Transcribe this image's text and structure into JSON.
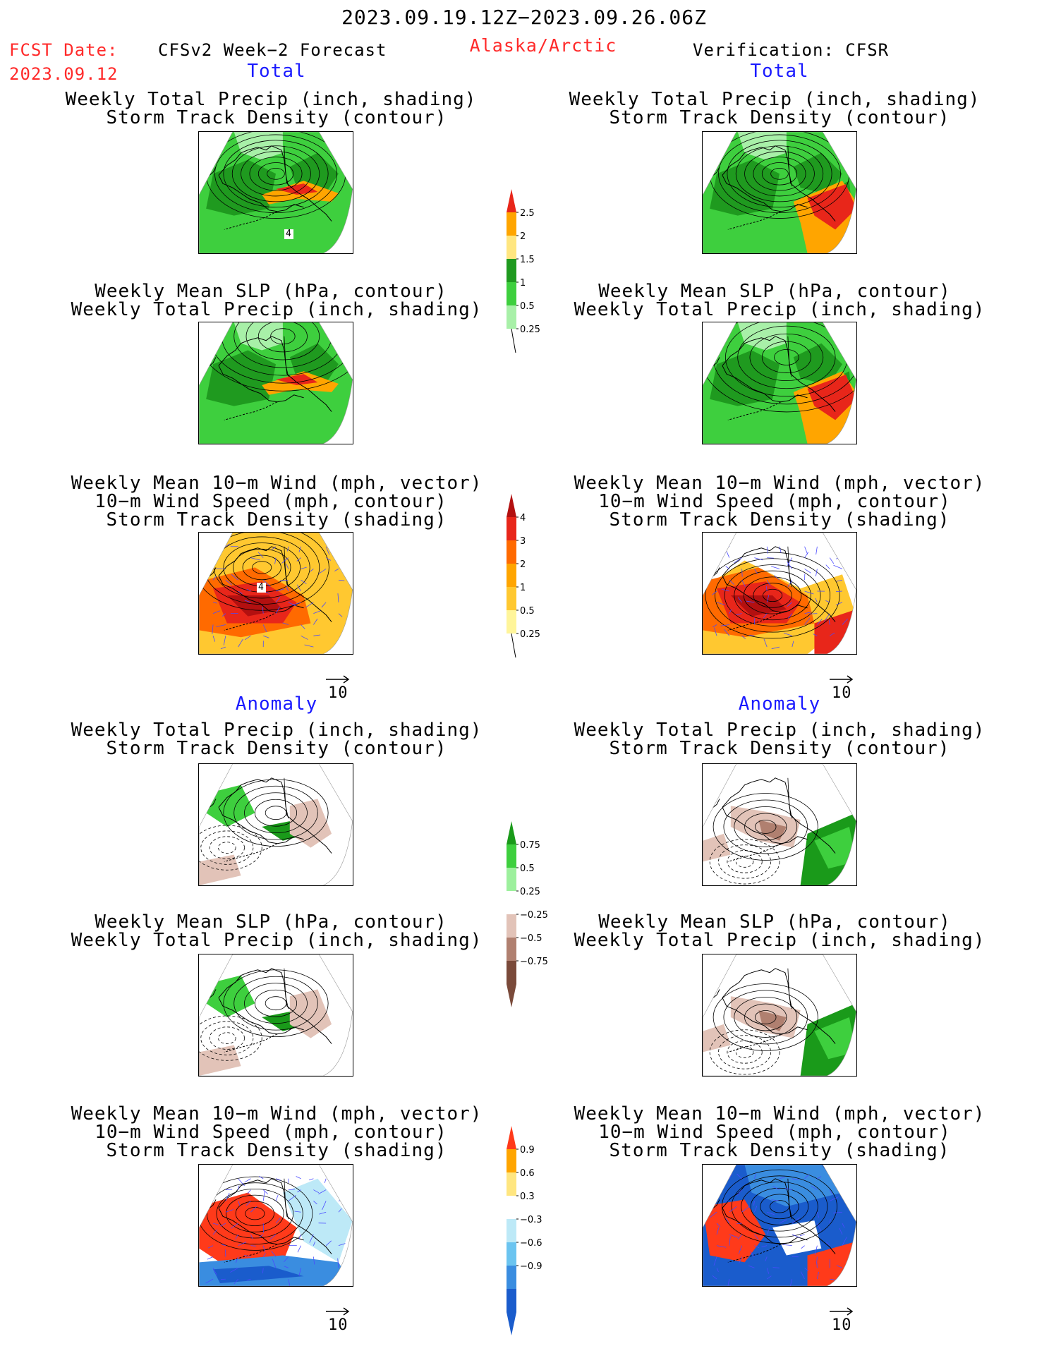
{
  "header": {
    "period": "2023.09.19.12Z−2023.09.26.06Z",
    "fcst_label": "FCST Date:",
    "fcst_date": "2023.09.12",
    "model": "CFSv2 Week−2 Forecast",
    "region": "Alaska/Arctic",
    "verification": "Verification: CFSR"
  },
  "sections": {
    "total": "Total",
    "anomaly": "Anomaly"
  },
  "titles": {
    "precip_storm": [
      "Weekly Total Precip (inch, shading)",
      "Storm Track Density (contour)"
    ],
    "slp_precip": [
      "Weekly Mean SLP (hPa, contour)",
      "Weekly Total Precip (inch, shading)"
    ],
    "wind_storm": [
      "Weekly Mean 10−m Wind (mph, vector)",
      "10−m Wind Speed (mph, contour)",
      "Storm Track Density (shading)"
    ]
  },
  "vector_ref": "10",
  "contour_labels": {
    "precip_storm": "4",
    "wind_storm": "4"
  },
  "colorbars": {
    "precip_total": {
      "labels": [
        "2.5",
        "2",
        "1.5",
        "1",
        "0.5",
        "0.25"
      ],
      "colors": [
        "#e8261a",
        "#ffa500",
        "#ffe680",
        "#1f9a1f",
        "#3ecf3e",
        "#a8f0a8"
      ]
    },
    "storm_total": {
      "labels": [
        "4",
        "3",
        "2",
        "1",
        "0.5",
        "0.25"
      ],
      "colors": [
        "#b31010",
        "#e8261a",
        "#ff6a00",
        "#ffa500",
        "#ffc830",
        "#fff59a"
      ]
    },
    "precip_anom": {
      "labels": [
        "0.75",
        "0.5",
        "0.25",
        "−0.25",
        "−0.5",
        "−0.75"
      ],
      "colors": [
        "#1a9a1a",
        "#3ecf3e",
        "#9df09d",
        "#ffffff",
        "#e2c3b8",
        "#b08070",
        "#7a4a3a"
      ]
    },
    "storm_anom": {
      "labels": [
        "0.9",
        "0.6",
        "0.3",
        "−0.3",
        "−0.6",
        "−0.9"
      ],
      "colors": [
        "#ff3a1a",
        "#ffa500",
        "#ffe680",
        "#ffffff",
        "#bde9f7",
        "#6bc4f0",
        "#3a8de0",
        "#1a5ccc"
      ]
    }
  }
}
